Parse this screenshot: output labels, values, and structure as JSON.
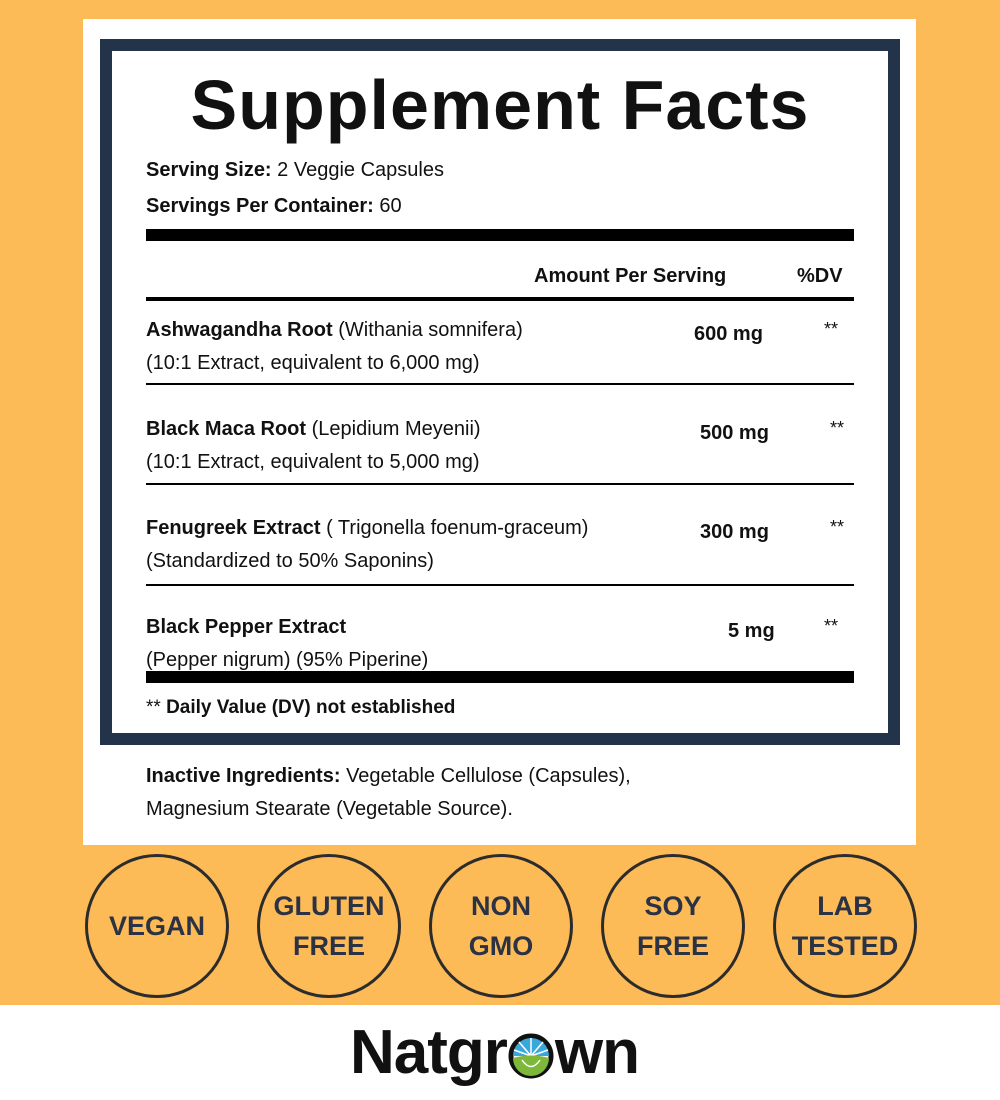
{
  "title": "Supplement Facts",
  "serving_size": {
    "label": "Serving Size:",
    "value": "2 Veggie Capsules"
  },
  "servings_per_container": {
    "label": "Servings Per Container:",
    "value": "60"
  },
  "columns": {
    "amount": "Amount Per Serving",
    "dv": "%DV"
  },
  "ingredients": [
    {
      "name": "Ashwagandha Root",
      "latin": "(Withania somnifera)",
      "detail": "(10:1 Extract, equivalent to 6,000 mg)",
      "amount": "600 mg",
      "dv": "**"
    },
    {
      "name": "Black Maca Root",
      "latin": "(Lepidium Meyenii)",
      "detail": "(10:1 Extract, equivalent to 5,000 mg)",
      "amount": "500 mg",
      "dv": "**"
    },
    {
      "name": "Fenugreek Extract",
      "latin": "( Trigonella foenum-graceum)",
      "detail": "(Standardized to 50% Saponins)",
      "amount": "300 mg",
      "dv": "**"
    },
    {
      "name": "Black Pepper Extract",
      "latin": "",
      "detail": "(Pepper nigrum) (95% Piperine)",
      "amount": "5 mg",
      "dv": "**"
    }
  ],
  "footnote": {
    "stars": "**",
    "text": "Daily Value (DV) not established"
  },
  "inactive": {
    "label": "Inactive Ingredients:",
    "line1": "Vegetable Cellulose (Capsules),",
    "line2": "Magnesium Stearate (Vegetable Source)."
  },
  "badges": [
    [
      "VEGAN"
    ],
    [
      "GLUTEN",
      "FREE"
    ],
    [
      "NON",
      "GMO"
    ],
    [
      "SOY",
      "FREE"
    ],
    [
      "LAB",
      "TESTED"
    ]
  ],
  "brand": {
    "before": "Natgr",
    "after": "wn"
  },
  "colors": {
    "background": "#fdbb58",
    "border": "#22334a",
    "logo_blue": "#3aa7dc",
    "logo_green": "#7db83a"
  }
}
